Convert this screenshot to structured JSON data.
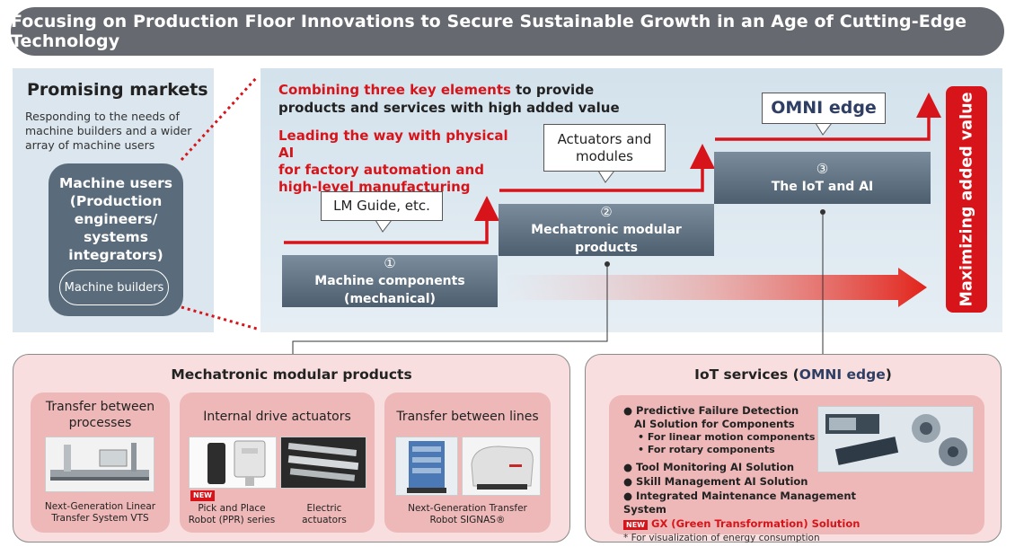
{
  "header": {
    "title": "Focusing on Production Floor Innovations to Secure Sustainable Growth in an Age of Cutting-Edge Technology"
  },
  "left": {
    "title": "Promising markets",
    "description": "Responding to the needs of machine builders and a wider array of machine users",
    "machine_users": "Machine users\n(Production\nengineers/\nsystems\nintegrators)",
    "machine_builders": "Machine builders"
  },
  "main": {
    "combine_red": "Combining three key elements",
    "combine_rest_1": " to provide",
    "combine_line2": "products and services with high added value",
    "lead": "Leading the way with physical AI\nfor factory automation and\nhigh-level manufacturing",
    "callout_lm": "LM Guide, etc.",
    "callout_actuators": "Actuators and\nmodules",
    "callout_omni": "OMNI edge",
    "steps": [
      {
        "num": "①",
        "label": "Machine components (mechanical)"
      },
      {
        "num": "②",
        "label": "Mechatronic modular products"
      },
      {
        "num": "③",
        "label": "The IoT and AI"
      }
    ],
    "maximizing": "Maximizing added value"
  },
  "mechatronic": {
    "title": "Mechatronic modular products",
    "cards": [
      {
        "title": "Transfer between\nprocesses",
        "caption": "Next-Generation Linear\nTransfer System VTS"
      },
      {
        "title": "Internal drive actuators",
        "caption_a": "Pick and Place\nRobot (PPR) series",
        "caption_b": "Electric\nactuators",
        "new": "NEW"
      },
      {
        "title": "Transfer between lines",
        "caption": "Next-Generation Transfer\nRobot SIGNAS®"
      }
    ]
  },
  "iot": {
    "title_prefix": "IoT services (",
    "title_omni": "OMNI edge",
    "title_suffix": ")",
    "items": [
      "Predictive Failure Detection",
      "AI Solution for Components",
      "• For linear motion components",
      "• For rotary components",
      "Tool Monitoring AI Solution",
      "Skill Management AI Solution",
      "Integrated Maintenance Management System"
    ],
    "new": "NEW",
    "gx": "GX (Green Transformation) Solution",
    "footnote": "* For visualization of energy consumption"
  },
  "colors": {
    "accent_red": "#d7141a",
    "step_gray": "#5a6c7b",
    "panel_blue": "#dbe6ee",
    "panel_pink": "#f8dede",
    "card_pink": "#efb8b8"
  }
}
